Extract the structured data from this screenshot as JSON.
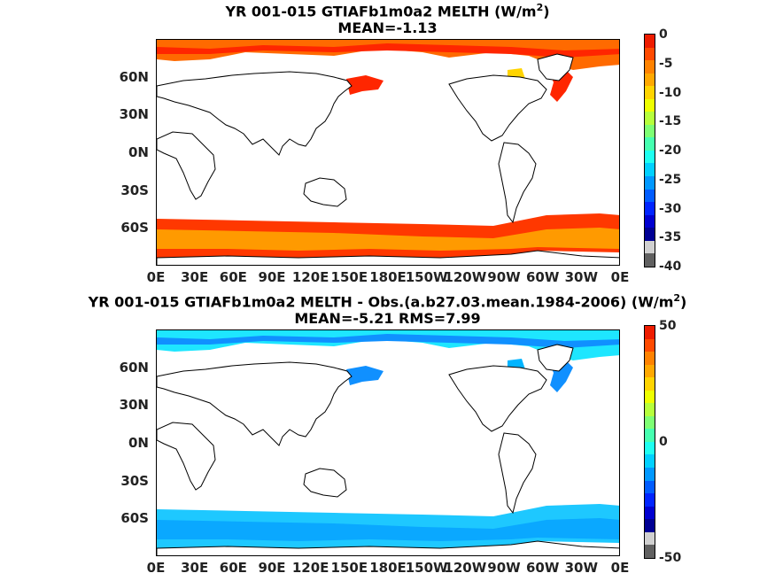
{
  "panels": [
    {
      "title": {
        "line1_prefix": "YR 001-015 GTIAFb1m0a2  MELTH (W/m",
        "line1_sup": "2",
        "line1_suffix": ")",
        "line2": "MEAN=-1.13"
      },
      "colorbar": {
        "ticks": [
          "0",
          "-5",
          "-10",
          "-15",
          "-20",
          "-25",
          "-30",
          "-35",
          "-40"
        ],
        "colors": [
          "#ee1c00",
          "#ff4a00",
          "#ff8200",
          "#ffa800",
          "#ffd400",
          "#eeff00",
          "#b6ff3c",
          "#7eff74",
          "#46ffb0",
          "#1efff0",
          "#00d0ff",
          "#0098ff",
          "#005cff",
          "#0024ff",
          "#0000d0",
          "#000094",
          "#d0d0d0",
          "#606060"
        ]
      },
      "field_colors": {
        "north": "#ff6a00",
        "north_edge": "#ff2600",
        "south": "#ff3800",
        "south_inner": "#ff9a00",
        "hudson": "#ffd400"
      }
    },
    {
      "title": {
        "line1_prefix": "YR 001-015 GTIAFb1m0a2 MELTH - Obs.(a.b27.03.mean.1984-2006) (W/m",
        "line1_sup": "2",
        "line1_suffix": ")",
        "line2": "MEAN=-5.21 RMS=7.99"
      },
      "colorbar": {
        "ticks": [
          "50",
          "0",
          "-50"
        ],
        "colors": [
          "#ee1c00",
          "#ff4a00",
          "#ff8200",
          "#ffa800",
          "#ffd400",
          "#eeff00",
          "#b6ff3c",
          "#7eff74",
          "#46ffb0",
          "#1efff0",
          "#00d0ff",
          "#0098ff",
          "#005cff",
          "#0024ff",
          "#0000d0",
          "#000094",
          "#d0d0d0",
          "#606060"
        ]
      },
      "field_colors": {
        "north": "#1ee6ff",
        "north_edge": "#1090ff",
        "south": "#1ec8ff",
        "south_inner": "#0aa8ff",
        "hudson": "#00b4ff"
      }
    }
  ],
  "axes": {
    "lat_labels": [
      "60N",
      "30N",
      "0N",
      "30S",
      "60S"
    ],
    "lon_labels": [
      "0E",
      "30E",
      "60E",
      "90E",
      "120E",
      "150E",
      "180E",
      "150W",
      "120W",
      "90W",
      "60W",
      "30W",
      "0E"
    ]
  },
  "icons": {
    "coastline": "coastline-outline"
  }
}
